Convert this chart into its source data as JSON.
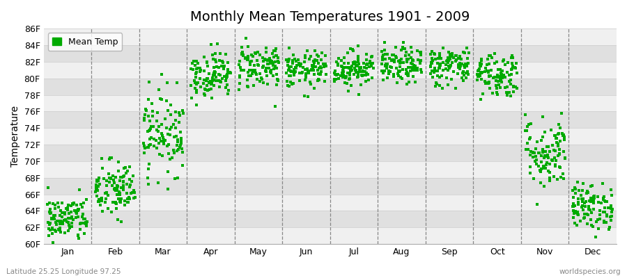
{
  "title": "Monthly Mean Temperatures 1901 - 2009",
  "ylabel": "Temperature",
  "xlabel": "",
  "footer_left": "Latitude 25.25 Longitude 97.25",
  "footer_right": "worldspecies.org",
  "ytick_labels": [
    "60F",
    "62F",
    "64F",
    "66F",
    "68F",
    "70F",
    "72F",
    "74F",
    "76F",
    "78F",
    "80F",
    "82F",
    "84F",
    "86F"
  ],
  "ytick_values": [
    60,
    62,
    64,
    66,
    68,
    70,
    72,
    74,
    76,
    78,
    80,
    82,
    84,
    86
  ],
  "ylim": [
    60,
    86
  ],
  "months": [
    "Jan",
    "Feb",
    "Mar",
    "Apr",
    "May",
    "Jun",
    "Jul",
    "Aug",
    "Sep",
    "Oct",
    "Nov",
    "Dec"
  ],
  "n_years": 109,
  "dot_color": "#00aa00",
  "dot_size": 10,
  "bg_color": "#ffffff",
  "plot_bg_color": "#f0f0f0",
  "stripe_color": "#e0e0e0",
  "legend_label": "Mean Temp",
  "monthly_means": [
    63.0,
    66.5,
    73.5,
    80.5,
    81.5,
    81.0,
    81.2,
    81.5,
    81.5,
    80.5,
    71.0,
    64.5
  ],
  "monthly_stds": [
    1.4,
    1.8,
    2.5,
    1.4,
    1.4,
    1.1,
    1.1,
    1.1,
    1.2,
    1.4,
    2.2,
    1.4
  ]
}
